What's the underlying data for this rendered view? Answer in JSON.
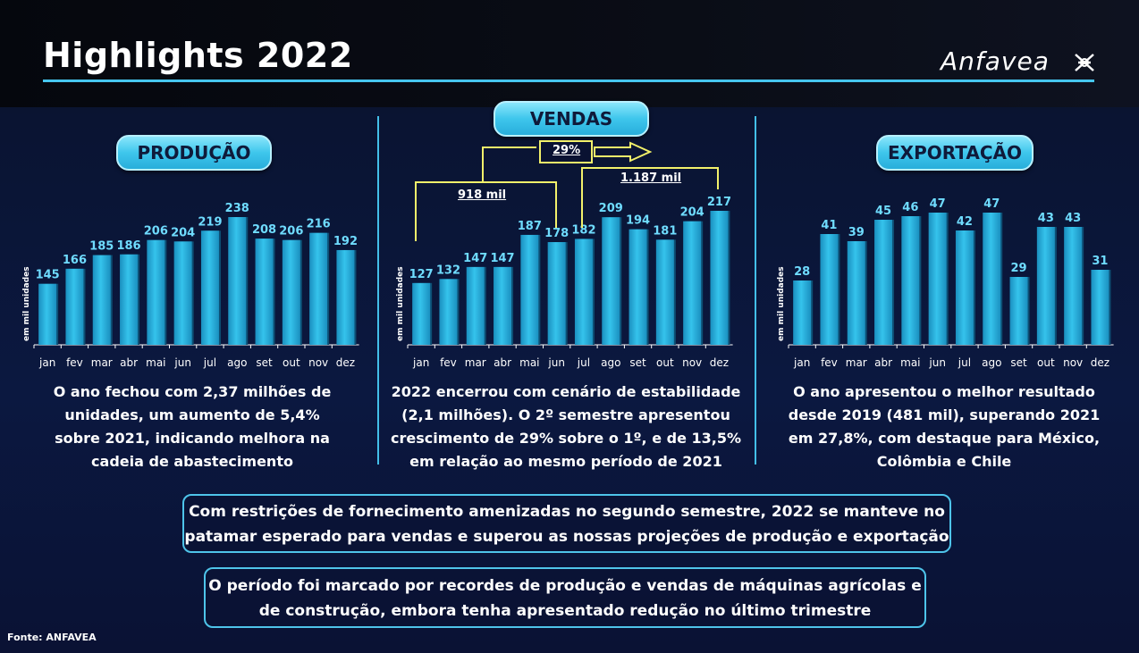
{
  "header": {
    "title": "Highlights 2022",
    "logo_text": "Anfavea"
  },
  "colors": {
    "bar": "#35c3ec",
    "bar_dark": "#1a8fbf",
    "accent": "#46c6ef",
    "value_label": "#6fdcff",
    "bracket": "#f2f06a"
  },
  "panels": {
    "producao": {
      "label": "PRODUÇÃO",
      "description": [
        "O ano fechou com 2,37 milhões de",
        "unidades, um aumento de 5,4%",
        "sobre 2021, indicando melhora na",
        "cadeia de abastecimento"
      ]
    },
    "vendas": {
      "label": "VENDAS",
      "annotations": {
        "first_half": "918 mil",
        "second_half": "1.187 mil",
        "growth": "29%"
      },
      "description": [
        "2022 encerrou com cenário de estabilidade",
        "(2,1 milhões). O 2º semestre apresentou",
        "crescimento de 29% sobre o 1º, e de 13,5%",
        "em relação ao mesmo período de 2021"
      ]
    },
    "exportacao": {
      "label": "EXPORTAÇÃO",
      "description": [
        "O ano apresentou o melhor resultado",
        "desde 2019 (481 mil), superando 2021",
        "em 27,8%, com destaque para México,",
        "Colômbia e Chile"
      ]
    }
  },
  "chart_data": [
    {
      "type": "bar",
      "title": "PRODUÇÃO",
      "ylabel": "em mil unidades",
      "categories": [
        "jan",
        "fev",
        "mar",
        "abr",
        "mai",
        "jun",
        "jul",
        "ago",
        "set",
        "out",
        "nov",
        "dez"
      ],
      "values": [
        145,
        166,
        185,
        186,
        206,
        204,
        219,
        238,
        208,
        206,
        216,
        192
      ],
      "ylim": [
        0,
        250
      ],
      "grid": false
    },
    {
      "type": "bar",
      "title": "VENDAS",
      "ylabel": "em mil unidades",
      "categories": [
        "jan",
        "fev",
        "mar",
        "abr",
        "mai",
        "jun",
        "jul",
        "ago",
        "set",
        "out",
        "nov",
        "dez"
      ],
      "values": [
        127,
        132,
        147,
        147,
        187,
        178,
        182,
        209,
        194,
        181,
        204,
        217
      ],
      "ylim": [
        0,
        250
      ],
      "grid": false
    },
    {
      "type": "bar",
      "title": "EXPORTAÇÃO",
      "ylabel": "em mil unidades",
      "categories": [
        "jan",
        "fev",
        "mar",
        "abr",
        "mai",
        "jun",
        "jul",
        "ago",
        "set",
        "out",
        "nov",
        "dez"
      ],
      "values": [
        28,
        41,
        39,
        45,
        46,
        47,
        42,
        47,
        29,
        43,
        43,
        31
      ],
      "ylim": [
        0,
        50
      ],
      "grid": false
    }
  ],
  "boxes": {
    "box1": [
      "Com restrições de fornecimento amenizadas no segundo semestre, 2022 se manteve no",
      "patamar esperado para vendas e superou as nossas projeções de produção e exportação"
    ],
    "box2": [
      "O período foi marcado por recordes de produção e vendas de máquinas agrícolas e",
      "de construção, embora tenha apresentado redução no último trimestre"
    ]
  },
  "footer": {
    "source": "Fonte: ANFAVEA"
  }
}
